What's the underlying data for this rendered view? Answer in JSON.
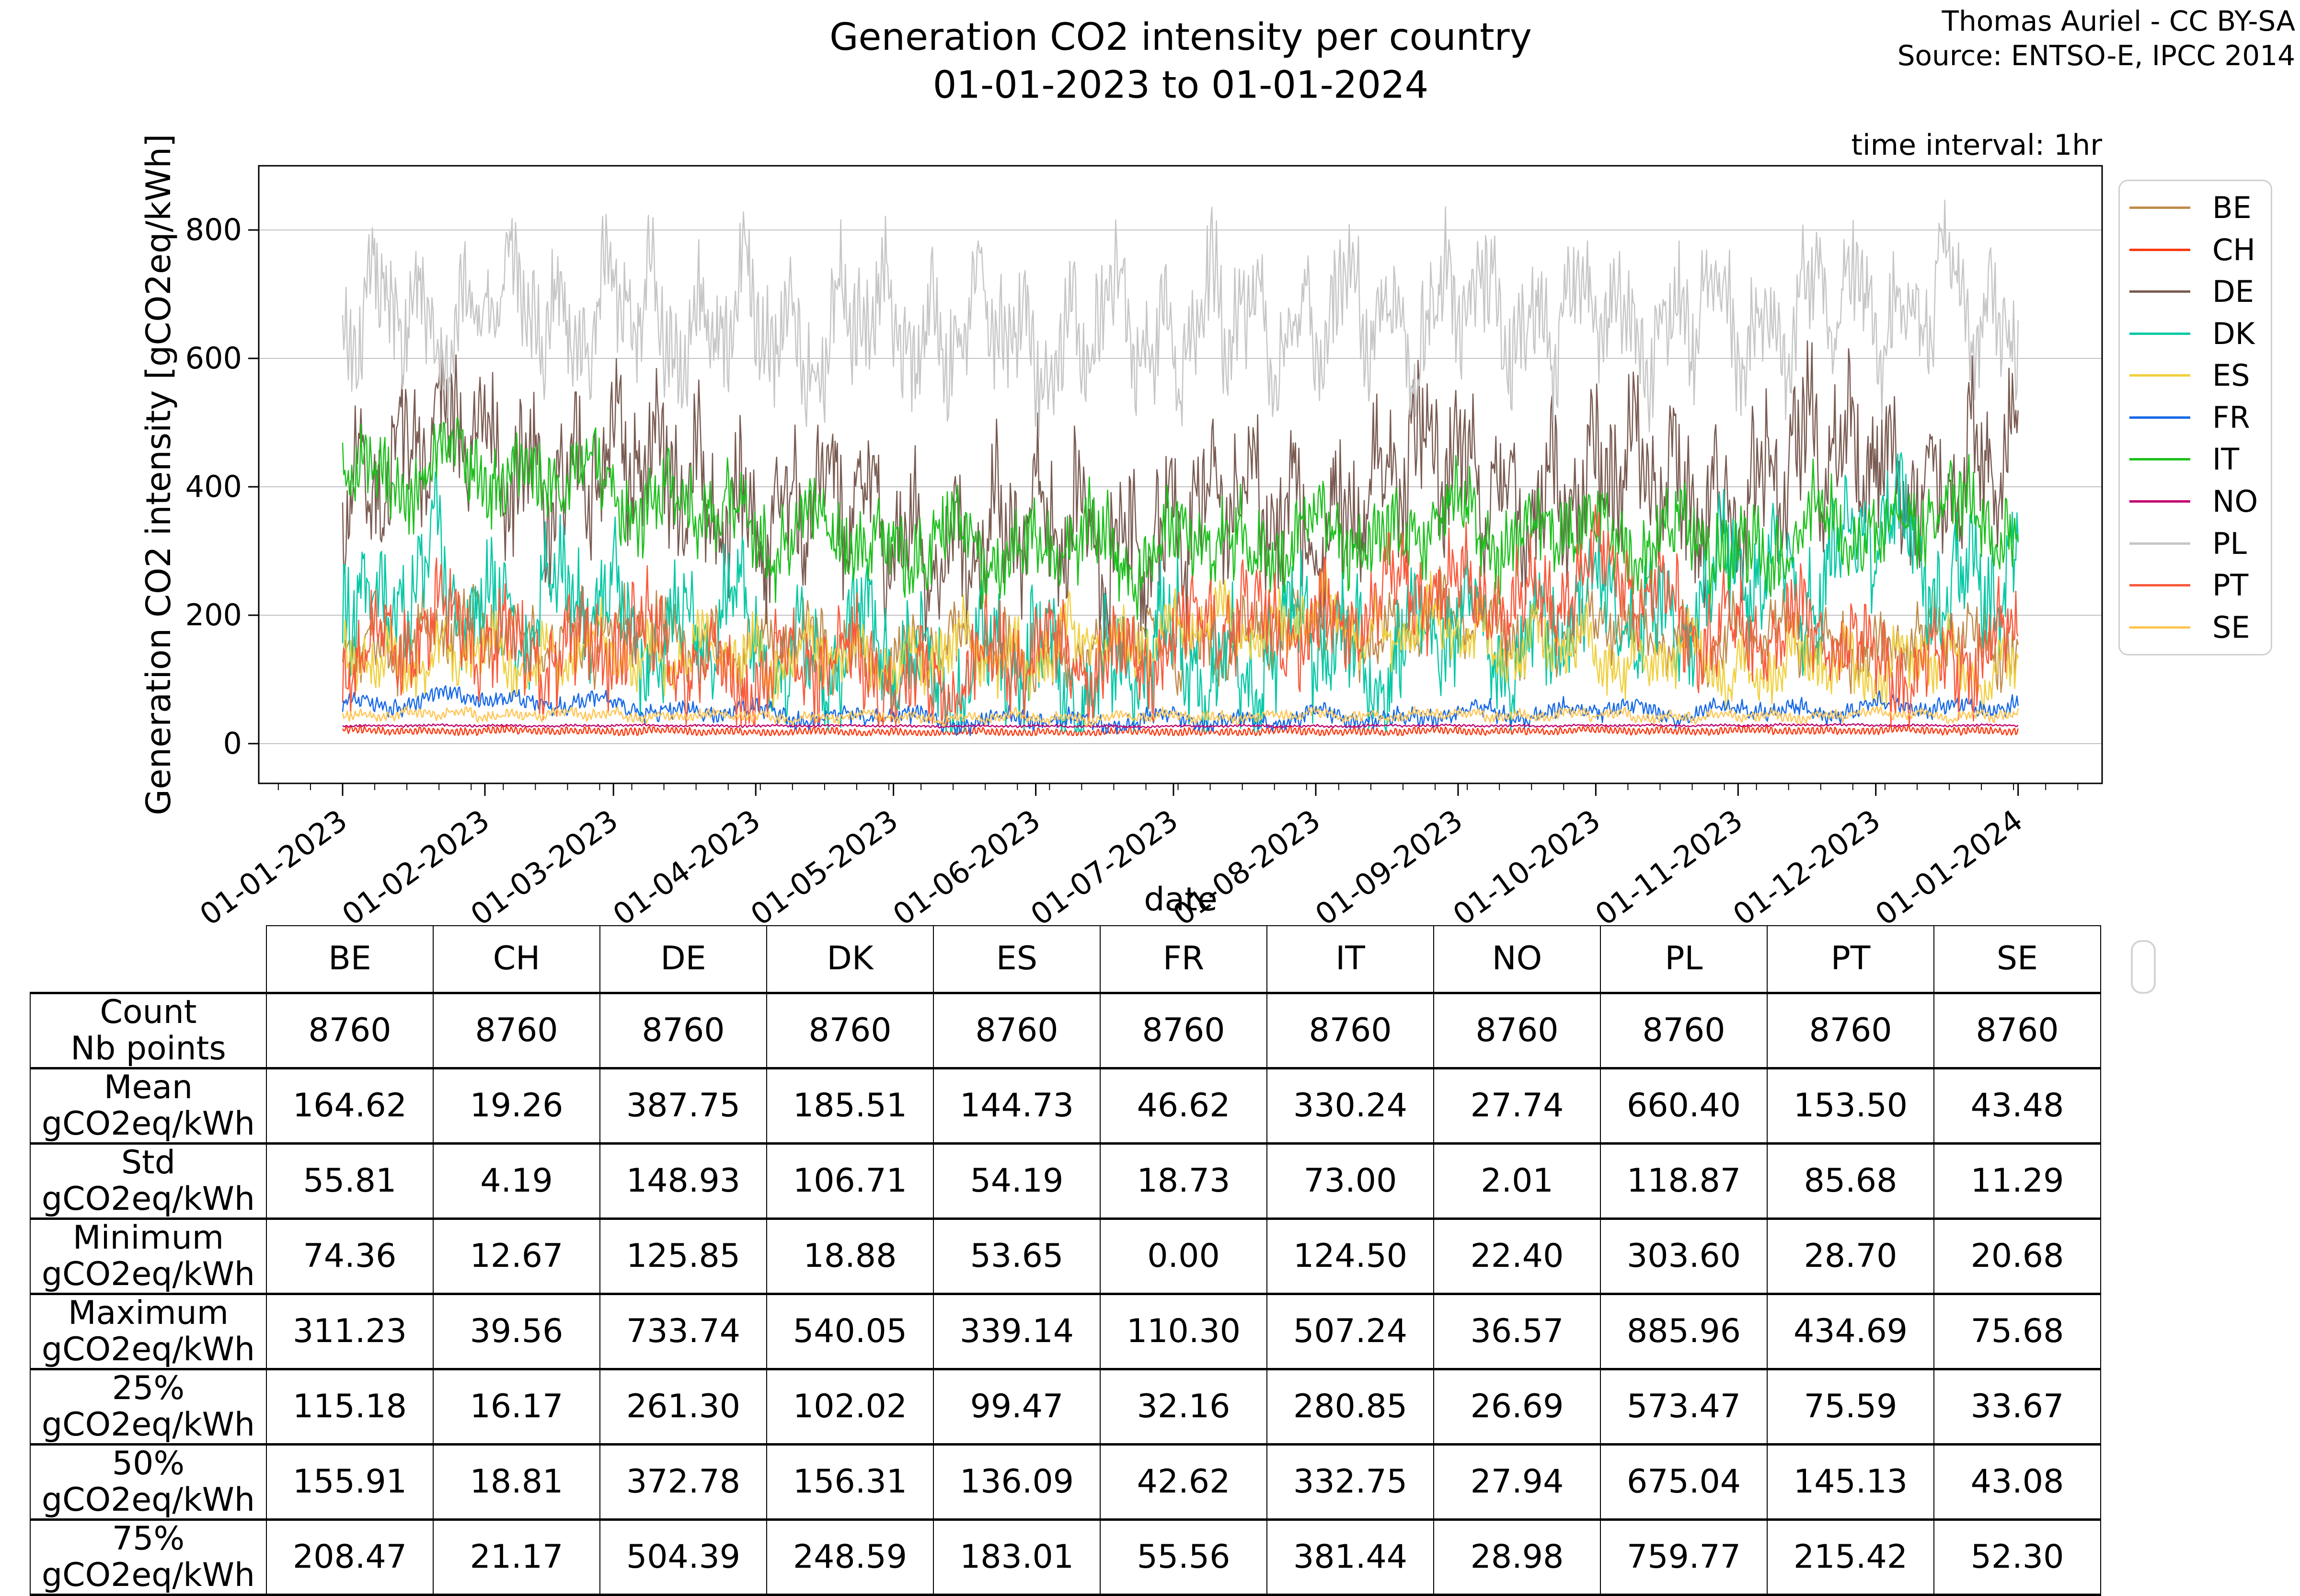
{
  "title": {
    "line1": "Generation CO2 intensity per country",
    "line2": "01-01-2023 to 01-01-2024"
  },
  "attribution": {
    "line1": "Thomas Auriel - CC BY-SA",
    "line2": "Source: ENTSO-E, IPCC 2014"
  },
  "annotations": {
    "time_interval": "time interval: 1hr"
  },
  "chart_data": {
    "type": "line",
    "title": "Generation CO2 intensity per country 01-01-2023 to 01-01-2024",
    "xlabel": "date",
    "ylabel": "Generation CO2 intensity [gCO2eq/kWh]",
    "x_tick_labels": [
      "01-01-2023",
      "01-02-2023",
      "01-03-2023",
      "01-04-2023",
      "01-05-2023",
      "01-06-2023",
      "01-07-2023",
      "01-08-2023",
      "01-09-2023",
      "01-10-2023",
      "01-11-2023",
      "01-12-2023",
      "01-01-2024"
    ],
    "x_tick_day_offsets": [
      0,
      31,
      59,
      90,
      120,
      151,
      181,
      212,
      243,
      273,
      304,
      334,
      365
    ],
    "minor_tick_step_days": 7,
    "y_ticks": [
      0,
      200,
      400,
      600,
      800
    ],
    "ylim": [
      -62,
      900
    ],
    "grid": "horizontal",
    "grid_color": "#c2c2c2",
    "legend_position": "right-outside",
    "points_per_series": 8760,
    "series": [
      {
        "name": "BE",
        "color": "#c08b4a",
        "stats": {
          "count": 8760,
          "mean": 164.62,
          "std": 55.81,
          "min": 74.36,
          "max": 311.23,
          "p25": 115.18,
          "p50": 155.91,
          "p75": 208.47
        },
        "monthly_profile": [
          160,
          175,
          165,
          155,
          145,
          140,
          155,
          175,
          185,
          175,
          165,
          155,
          160
        ],
        "noise": {
          "lf": 45,
          "hf": 28,
          "daily": 22
        }
      },
      {
        "name": "CH",
        "color": "#fb3a0f",
        "stats": {
          "count": 8760,
          "mean": 19.26,
          "std": 4.19,
          "min": 12.67,
          "max": 39.56,
          "p25": 16.17,
          "p50": 18.81,
          "p75": 21.17
        },
        "monthly_profile": [
          20,
          20,
          19.5,
          18.5,
          18,
          18,
          18.5,
          19,
          19.5,
          20,
          20,
          20.5,
          20
        ],
        "noise": {
          "lf": 2.5,
          "hf": 2,
          "daily": 5
        }
      },
      {
        "name": "DE",
        "color": "#7a5b51",
        "stats": {
          "count": 8760,
          "mean": 387.75,
          "std": 148.93,
          "min": 125.85,
          "max": 733.74,
          "p25": 261.3,
          "p50": 372.78,
          "p75": 504.39
        },
        "monthly_profile": [
          420,
          455,
          420,
          375,
          330,
          320,
          340,
          370,
          420,
          390,
          410,
          450,
          410
        ],
        "noise": {
          "lf": 115,
          "hf": 65,
          "daily": 40
        }
      },
      {
        "name": "DK",
        "color": "#06c8a6",
        "stats": {
          "count": 8760,
          "mean": 185.51,
          "std": 106.71,
          "min": 18.88,
          "max": 540.05,
          "p25": 102.02,
          "p50": 156.31,
          "p75": 248.59
        },
        "monthly_profile": [
          250,
          225,
          195,
          160,
          130,
          115,
          125,
          145,
          165,
          195,
          250,
          320,
          250
        ],
        "noise": {
          "lf": 100,
          "hf": 55,
          "daily": 30
        }
      },
      {
        "name": "ES",
        "color": "#f0d03e",
        "stats": {
          "count": 8760,
          "mean": 144.73,
          "std": 54.19,
          "min": 53.65,
          "max": 339.14,
          "p25": 99.47,
          "p50": 136.09,
          "p75": 183.01
        },
        "monthly_profile": [
          125,
          135,
          140,
          135,
          130,
          145,
          175,
          190,
          170,
          140,
          120,
          125,
          120
        ],
        "noise": {
          "lf": 45,
          "hf": 25,
          "daily": 22
        }
      },
      {
        "name": "FR",
        "color": "#1568e8",
        "stats": {
          "count": 8760,
          "mean": 46.62,
          "std": 18.73,
          "min": 0.0,
          "max": 110.3,
          "p25": 32.16,
          "p50": 42.62,
          "p75": 55.56
        },
        "monthly_profile": [
          62,
          72,
          58,
          46,
          40,
          35,
          36,
          40,
          45,
          52,
          50,
          55,
          60
        ],
        "noise": {
          "lf": 14,
          "hf": 7,
          "daily": 7
        }
      },
      {
        "name": "IT",
        "color": "#1cc01c",
        "stats": {
          "count": 8760,
          "mean": 330.24,
          "std": 73.0,
          "min": 124.5,
          "max": 507.24,
          "p25": 280.85,
          "p50": 332.75,
          "p75": 381.44
        },
        "monthly_profile": [
          420,
          430,
          395,
          340,
          310,
          300,
          310,
          320,
          340,
          330,
          305,
          340,
          360
        ],
        "noise": {
          "lf": 55,
          "hf": 35,
          "daily": 28
        }
      },
      {
        "name": "NO",
        "color": "#c2006e",
        "stats": {
          "count": 8760,
          "mean": 27.74,
          "std": 2.01,
          "min": 22.4,
          "max": 36.57,
          "p25": 26.69,
          "p50": 27.94,
          "p75": 28.98
        },
        "monthly_profile": [
          28,
          28,
          28,
          28,
          27.5,
          27,
          27,
          27.5,
          28,
          28,
          28.5,
          29,
          28
        ],
        "noise": {
          "lf": 1.2,
          "hf": 0.8,
          "daily": 1.2
        }
      },
      {
        "name": "PL",
        "color": "#c6c6c6",
        "stats": {
          "count": 8760,
          "mean": 660.4,
          "std": 118.87,
          "min": 303.6,
          "max": 885.96,
          "p25": 573.47,
          "p50": 675.04,
          "p75": 759.77
        },
        "monthly_profile": [
          660,
          680,
          670,
          650,
          645,
          635,
          650,
          660,
          675,
          665,
          650,
          690,
          670
        ],
        "noise": {
          "lf": 100,
          "hf": 55,
          "daily": 38
        }
      },
      {
        "name": "PT",
        "color": "#fa5a3c",
        "stats": {
          "count": 8760,
          "mean": 153.5,
          "std": 85.68,
          "min": 28.7,
          "max": 434.69,
          "p25": 75.59,
          "p50": 145.13,
          "p75": 215.42
        },
        "monthly_profile": [
          150,
          170,
          140,
          115,
          105,
          125,
          160,
          200,
          235,
          250,
          180,
          140,
          130
        ],
        "noise": {
          "lf": 70,
          "hf": 40,
          "daily": 30
        }
      },
      {
        "name": "SE",
        "color": "#ffc653",
        "stats": {
          "count": 8760,
          "mean": 43.48,
          "std": 11.29,
          "min": 20.68,
          "max": 75.68,
          "p25": 33.67,
          "p50": 43.08,
          "p75": 52.3
        },
        "monthly_profile": [
          45,
          46,
          45,
          42,
          41,
          40,
          42,
          44,
          45,
          44,
          42,
          46,
          44
        ],
        "noise": {
          "lf": 7,
          "hf": 4,
          "daily": 5
        }
      }
    ]
  },
  "table": {
    "columns": [
      "BE",
      "CH",
      "DE",
      "DK",
      "ES",
      "FR",
      "IT",
      "NO",
      "PL",
      "PT",
      "SE"
    ],
    "rows": [
      {
        "label": [
          "Count",
          "Nb points"
        ],
        "values": [
          "8760",
          "8760",
          "8760",
          "8760",
          "8760",
          "8760",
          "8760",
          "8760",
          "8760",
          "8760",
          "8760"
        ]
      },
      {
        "label": [
          "Mean",
          "gCO2eq/kWh"
        ],
        "values": [
          "164.62",
          "19.26",
          "387.75",
          "185.51",
          "144.73",
          "46.62",
          "330.24",
          "27.74",
          "660.40",
          "153.50",
          "43.48"
        ]
      },
      {
        "label": [
          "Std",
          "gCO2eq/kWh"
        ],
        "values": [
          "55.81",
          "4.19",
          "148.93",
          "106.71",
          "54.19",
          "18.73",
          "73.00",
          "2.01",
          "118.87",
          "85.68",
          "11.29"
        ]
      },
      {
        "label": [
          "Minimum",
          "gCO2eq/kWh"
        ],
        "values": [
          "74.36",
          "12.67",
          "125.85",
          "18.88",
          "53.65",
          "0.00",
          "124.50",
          "22.40",
          "303.60",
          "28.70",
          "20.68"
        ]
      },
      {
        "label": [
          "Maximum",
          "gCO2eq/kWh"
        ],
        "values": [
          "311.23",
          "39.56",
          "733.74",
          "540.05",
          "339.14",
          "110.30",
          "507.24",
          "36.57",
          "885.96",
          "434.69",
          "75.68"
        ]
      },
      {
        "label": [
          "25%",
          "gCO2eq/kWh"
        ],
        "values": [
          "115.18",
          "16.17",
          "261.30",
          "102.02",
          "99.47",
          "32.16",
          "280.85",
          "26.69",
          "573.47",
          "75.59",
          "33.67"
        ]
      },
      {
        "label": [
          "50%",
          "gCO2eq/kWh"
        ],
        "values": [
          "155.91",
          "18.81",
          "372.78",
          "156.31",
          "136.09",
          "42.62",
          "332.75",
          "27.94",
          "675.04",
          "145.13",
          "43.08"
        ]
      },
      {
        "label": [
          "75%",
          "gCO2eq/kWh"
        ],
        "values": [
          "208.47",
          "21.17",
          "504.39",
          "248.59",
          "183.01",
          "55.56",
          "381.44",
          "28.98",
          "759.77",
          "215.42",
          "52.30"
        ]
      }
    ]
  }
}
